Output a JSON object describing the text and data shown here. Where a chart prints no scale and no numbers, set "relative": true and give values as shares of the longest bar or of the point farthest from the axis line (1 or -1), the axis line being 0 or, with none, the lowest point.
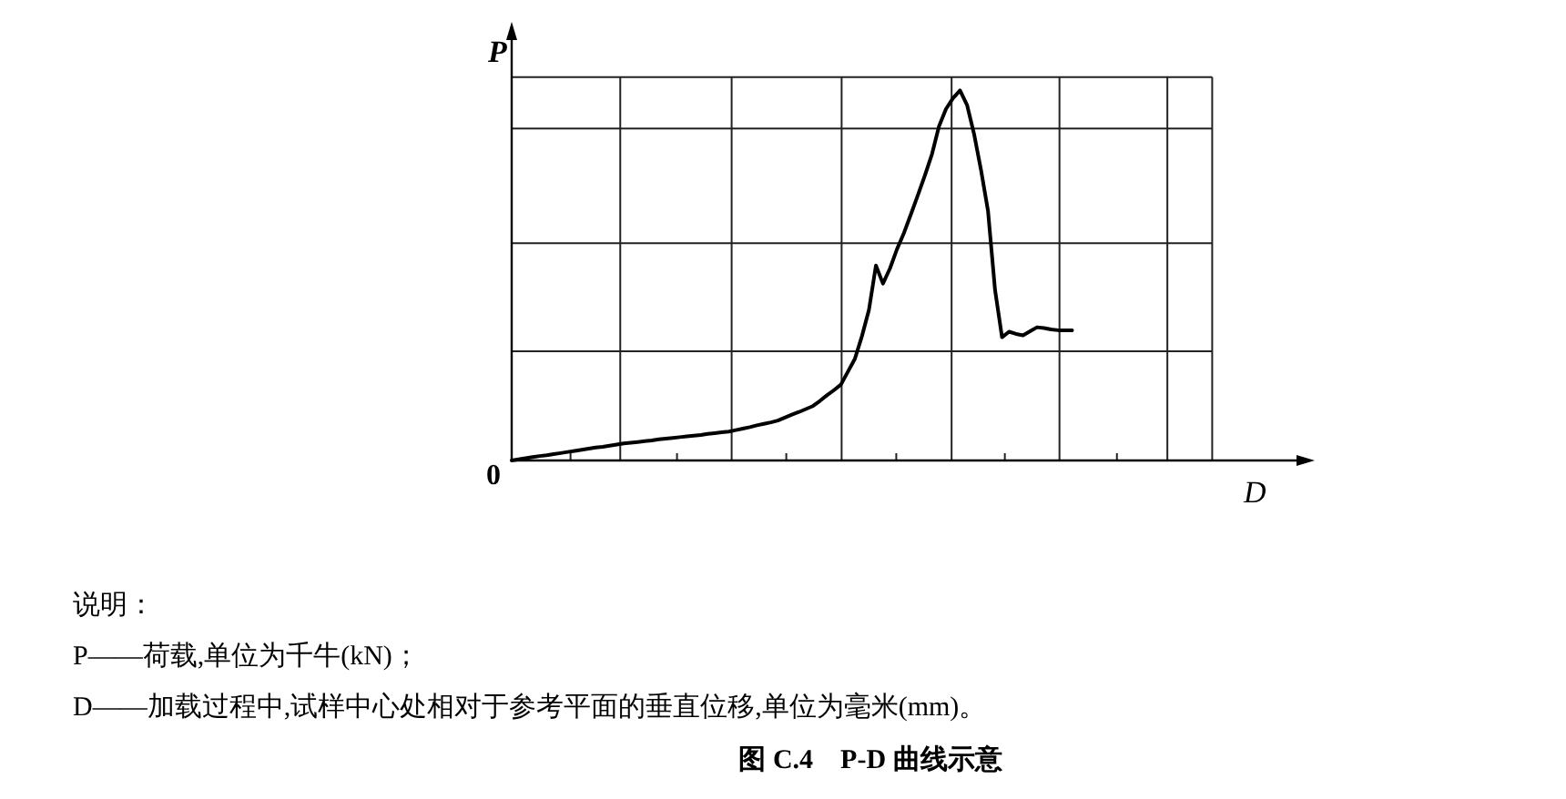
{
  "chart_data": {
    "type": "line",
    "relative": true,
    "title": "图 C.4　P-D 曲线示意",
    "xlabel": "D",
    "ylabel": "P",
    "grid": true,
    "color": "#000000",
    "categories": [
      null,
      null,
      null,
      null,
      null,
      null,
      null,
      null,
      null,
      null,
      null,
      null,
      null,
      null,
      null,
      null,
      null,
      null,
      null,
      null,
      null,
      null,
      null,
      null,
      null,
      null,
      null,
      null,
      null,
      null,
      null,
      null,
      null,
      null,
      null,
      null,
      null,
      null,
      null,
      null,
      null,
      null,
      null,
      null,
      null,
      null,
      null,
      null,
      null,
      null,
      null,
      null,
      null,
      null,
      null,
      null,
      null,
      null,
      null,
      null,
      null,
      null,
      null,
      null,
      null,
      null,
      null,
      null,
      null,
      null,
      null,
      null,
      null,
      null,
      null,
      null,
      null,
      null,
      null,
      null,
      null,
      null,
      null,
      null,
      null,
      null,
      null,
      null,
      null,
      null,
      null,
      null,
      null,
      null,
      null,
      null,
      null,
      null,
      null,
      null,
      null
    ],
    "values": [
      0,
      0.003,
      0.006,
      0.009,
      0.012,
      0.014,
      0.017,
      0.02,
      0.023,
      0.026,
      0.029,
      0.032,
      0.035,
      0.037,
      0.04,
      0.043,
      0.046,
      0.048,
      0.05,
      0.052,
      0.054,
      0.057,
      0.059,
      0.061,
      0.063,
      0.065,
      0.067,
      0.069,
      0.072,
      0.074,
      0.076,
      0.078,
      0.082,
      0.086,
      0.09,
      0.095,
      0.099,
      0.103,
      0.108,
      0.116,
      0.124,
      0.131,
      0.139,
      0.147,
      0.161,
      0.176,
      0.19,
      0.205,
      0.24,
      0.275,
      0.336,
      0.407,
      0.527,
      0.478,
      0.519,
      0.571,
      0.615,
      0.666,
      0.718,
      0.771,
      0.828,
      0.903,
      0.95,
      0.979,
      1,
      0.961,
      0.883,
      0.785,
      0.674,
      0.461,
      0.333,
      0.348,
      0.342,
      0.338,
      0.349,
      0.36,
      0.358,
      0.354,
      0.352,
      0.352,
      0.352,
      null,
      null,
      null,
      null,
      null,
      null,
      null,
      null,
      null,
      null,
      null,
      null,
      null,
      null,
      null,
      null,
      null,
      null,
      null,
      null
    ],
    "annotations": [
      "0",
      "说明：",
      "P——荷载,单位为千牛(kN)；",
      "D——加载过程中,试样中心处相对于参考平面的垂直位移,单位为毫米(mm)。"
    ]
  }
}
